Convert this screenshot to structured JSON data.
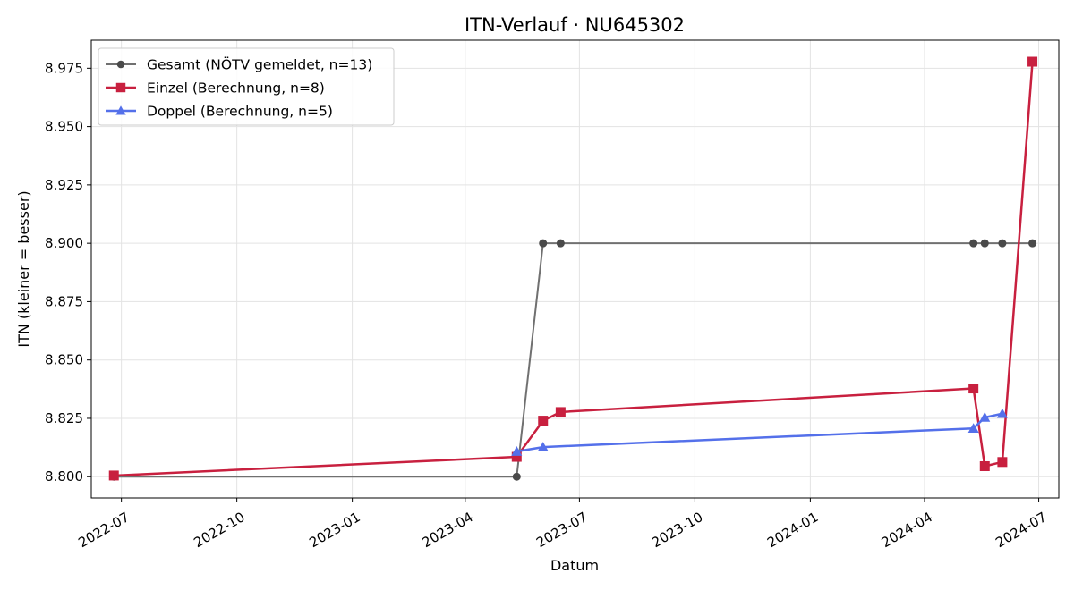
{
  "chart_data": {
    "type": "line",
    "title": "ITN-Verlauf · NU645302",
    "xlabel": "Datum",
    "ylabel": "ITN  (kleiner = besser)",
    "x_axis_type": "date",
    "xlim": [
      "2022-06-07",
      "2024-07-17"
    ],
    "ylim": [
      8.7909,
      8.987
    ],
    "x_ticks": [
      {
        "date": "2022-07-01",
        "label": "2022-07"
      },
      {
        "date": "2022-10-01",
        "label": "2022-10"
      },
      {
        "date": "2023-01-01",
        "label": "2023-01"
      },
      {
        "date": "2023-04-01",
        "label": "2023-04"
      },
      {
        "date": "2023-07-01",
        "label": "2023-07"
      },
      {
        "date": "2023-10-01",
        "label": "2023-10"
      },
      {
        "date": "2024-01-01",
        "label": "2024-01"
      },
      {
        "date": "2024-04-01",
        "label": "2024-04"
      },
      {
        "date": "2024-07-01",
        "label": "2024-07"
      }
    ],
    "y_ticks": [
      "8.800",
      "8.825",
      "8.850",
      "8.875",
      "8.900",
      "8.925",
      "8.950",
      "8.975"
    ],
    "grid": true,
    "legend_position": "top-left",
    "series": [
      {
        "name": "Gesamt (NÖTV gemeldet, n=13)",
        "color": "#707070",
        "marker": "circle",
        "points": [
          {
            "x": "2022-06-25",
            "y": 8.8
          },
          {
            "x": "2023-05-12",
            "y": 8.8
          },
          {
            "x": "2023-06-02",
            "y": 8.9
          },
          {
            "x": "2023-06-16",
            "y": 8.9
          },
          {
            "x": "2024-05-10",
            "y": 8.9
          },
          {
            "x": "2024-05-19",
            "y": 8.9
          },
          {
            "x": "2024-06-02",
            "y": 8.9
          },
          {
            "x": "2024-06-26",
            "y": 8.9
          }
        ]
      },
      {
        "name": "Einzel (Berechnung, n=8)",
        "color": "#c8203f",
        "marker": "square",
        "points": [
          {
            "x": "2022-06-25",
            "y": 8.8005
          },
          {
            "x": "2023-05-12",
            "y": 8.8085
          },
          {
            "x": "2023-06-02",
            "y": 8.824
          },
          {
            "x": "2023-06-16",
            "y": 8.8277
          },
          {
            "x": "2024-05-10",
            "y": 8.8378
          },
          {
            "x": "2024-05-19",
            "y": 8.8045
          },
          {
            "x": "2024-06-02",
            "y": 8.8063
          },
          {
            "x": "2024-06-26",
            "y": 8.9778
          }
        ]
      },
      {
        "name": "Doppel (Berechnung, n=5)",
        "color": "#5470ea",
        "marker": "triangle",
        "points": [
          {
            "x": "2023-05-12",
            "y": 8.8108
          },
          {
            "x": "2023-06-02",
            "y": 8.8127
          },
          {
            "x": "2024-05-10",
            "y": 8.8207
          },
          {
            "x": "2024-05-19",
            "y": 8.8254
          },
          {
            "x": "2024-06-02",
            "y": 8.827
          }
        ]
      }
    ]
  }
}
